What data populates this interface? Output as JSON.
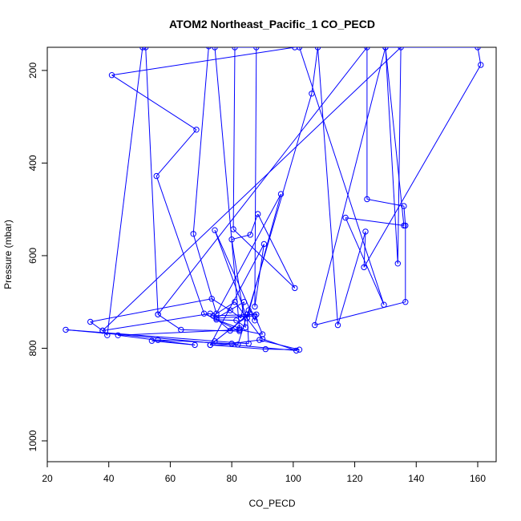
{
  "chart_data": {
    "type": "line",
    "title": "ATOM2 Northeast_Pacific_1 CO_PECD",
    "xlabel": "CO_PECD",
    "ylabel": "Pressure (mbar)",
    "xlim": [
      20,
      166
    ],
    "ylim": [
      1045,
      150
    ],
    "y_axis_inverted": true,
    "x_ticks": [
      20,
      40,
      60,
      80,
      100,
      120,
      140,
      160
    ],
    "y_ticks": [
      200,
      400,
      600,
      800,
      1000
    ],
    "grid": false,
    "line_color": "#0000ff",
    "marker": "open-circle",
    "series": [
      {
        "points": [
          [
            86.0,
            725
          ],
          [
            74.5,
            785
          ],
          [
            73.0,
            793
          ],
          [
            91.0,
            802
          ],
          [
            102.0,
            803
          ],
          [
            89.0,
            782
          ],
          [
            80.0,
            790
          ],
          [
            56.0,
            782
          ],
          [
            54.0,
            784
          ],
          [
            68.0,
            793
          ],
          [
            43.0,
            772
          ],
          [
            82.5,
            760
          ],
          [
            90.0,
            770
          ],
          [
            87.5,
            730
          ],
          [
            75.0,
            735
          ],
          [
            84.0,
            700
          ],
          [
            83.0,
            735
          ],
          [
            79.5,
            718
          ],
          [
            73.5,
            693
          ],
          [
            34.0,
            743
          ],
          [
            38.0,
            762
          ],
          [
            73.0,
            725
          ],
          [
            79.5,
            762
          ],
          [
            85.0,
            727
          ],
          [
            85.5,
            790
          ],
          [
            26.0,
            760
          ],
          [
            101.0,
            805
          ],
          [
            90.0,
            780
          ],
          [
            81.0,
            700
          ],
          [
            74.0,
            730
          ],
          [
            88.0,
            727
          ],
          [
            87.5,
            740
          ],
          [
            74.5,
            545
          ],
          [
            85.0,
            735
          ],
          [
            96.0,
            467
          ],
          [
            75.0,
            725
          ],
          [
            67.5,
            553
          ],
          [
            72.5,
            148
          ],
          [
            74.5,
            150
          ],
          [
            82.5,
            757
          ],
          [
            75.0,
            738
          ],
          [
            81.5,
            740
          ],
          [
            84.5,
            755
          ],
          [
            80.0,
            565
          ],
          [
            86.0,
            555
          ],
          [
            88.5,
            510
          ],
          [
            100.5,
            670
          ],
          [
            80.5,
            543
          ],
          [
            81.0,
            150
          ],
          [
            88.0,
            150
          ],
          [
            87.5,
            710
          ],
          [
            90.5,
            575
          ],
          [
            73.0,
            793
          ],
          [
            82.0,
            792
          ],
          [
            85.5,
            718
          ],
          [
            106.0,
            250
          ],
          [
            108.0,
            150
          ],
          [
            114.5,
            750
          ],
          [
            123.5,
            548
          ],
          [
            123.0,
            625
          ],
          [
            161.0,
            188
          ],
          [
            160.0,
            150
          ],
          [
            130.0,
            150
          ],
          [
            107.0,
            750
          ],
          [
            136.5,
            700
          ],
          [
            136.5,
            535
          ],
          [
            136.0,
            493
          ],
          [
            124.0,
            478
          ],
          [
            124.0,
            150
          ],
          [
            56.0,
            727
          ],
          [
            63.5,
            760
          ],
          [
            82.5,
            763
          ],
          [
            71.0,
            725
          ],
          [
            55.5,
            428
          ],
          [
            68.5,
            328
          ],
          [
            41.0,
            210
          ],
          [
            100.5,
            150
          ],
          [
            102.0,
            150
          ],
          [
            129.5,
            706
          ],
          [
            117.0,
            518
          ],
          [
            136.0,
            535
          ],
          [
            130.0,
            150
          ],
          [
            134.0,
            617
          ],
          [
            135.0,
            150
          ],
          [
            38.0,
            762
          ],
          [
            39.5,
            772
          ],
          [
            51.0,
            150
          ],
          [
            52.0,
            150
          ],
          [
            56.0,
            727
          ]
        ]
      }
    ]
  }
}
